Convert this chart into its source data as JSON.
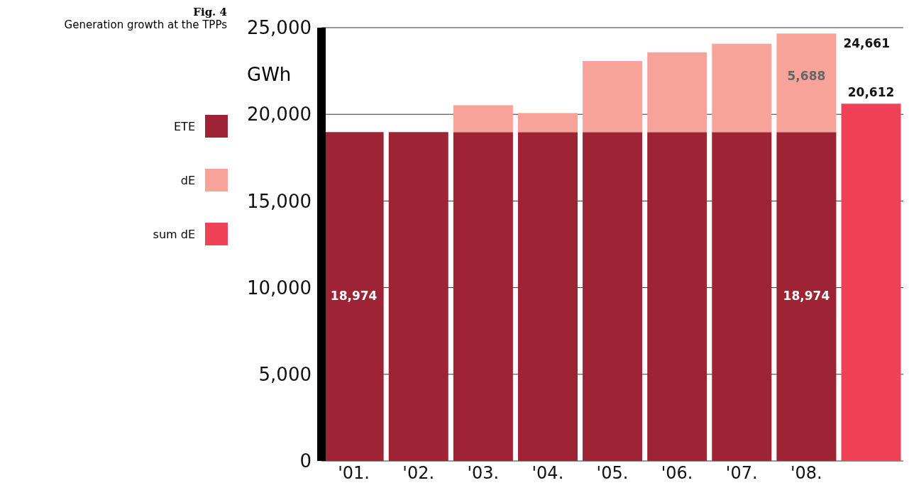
{
  "chart_data": {
    "type": "bar",
    "title": "Fig. 4",
    "subtitle": "Generation growth at the TPPs",
    "ylabel": "GWh",
    "categories": [
      "'01.",
      "'02.",
      "'03.",
      "'04.",
      "'05.",
      "'06.",
      "'07.",
      "'08.",
      null
    ],
    "stacked": true,
    "series": [
      {
        "name": "ETE",
        "color": "#9e2435",
        "values": [
          18974,
          18974,
          18974,
          18974,
          18974,
          18974,
          18974,
          18974,
          null
        ],
        "value_labels": [
          "18,974",
          null,
          null,
          null,
          null,
          null,
          null,
          "18,974",
          null
        ]
      },
      {
        "name": "dE",
        "color": "#f7a39a",
        "values": [
          0,
          0,
          1550,
          1100,
          4100,
          4600,
          5100,
          5688,
          null
        ],
        "value_labels": [
          null,
          null,
          null,
          null,
          null,
          null,
          null,
          "5,688",
          null
        ]
      },
      {
        "name": "sum dE",
        "color": "#ef4257",
        "values": [
          null,
          null,
          null,
          null,
          null,
          null,
          null,
          null,
          20612
        ],
        "value_labels": [
          null,
          null,
          null,
          null,
          null,
          null,
          null,
          null,
          "20,612"
        ]
      }
    ],
    "totals": [
      null,
      null,
      null,
      null,
      null,
      null,
      null,
      "24,661",
      null
    ],
    "ylim": [
      0,
      25000
    ],
    "yticks": [
      {
        "value": 0,
        "label": "0"
      },
      {
        "value": 5000,
        "label": "5,000"
      },
      {
        "value": 10000,
        "label": "10,000"
      },
      {
        "value": 15000,
        "label": "15,000"
      },
      {
        "value": 20000,
        "label": "20,000"
      },
      {
        "value": 25000,
        "label": "25,000"
      }
    ],
    "grid": "y",
    "legend": "left"
  }
}
